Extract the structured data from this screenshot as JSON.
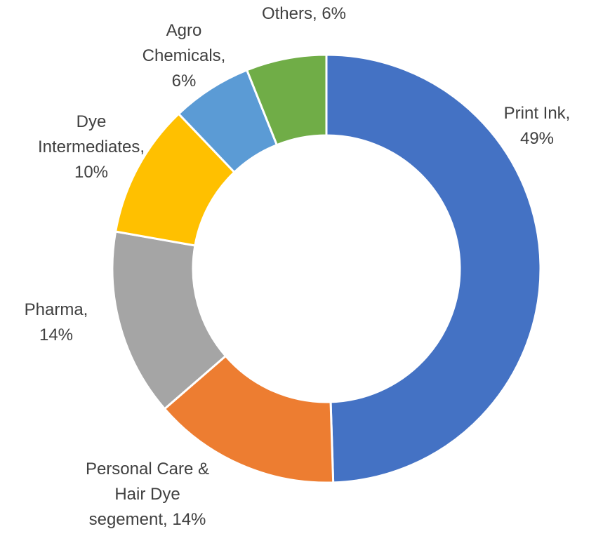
{
  "chart_data": {
    "type": "donut",
    "values": [
      49,
      14,
      14,
      10,
      6,
      6
    ],
    "value_labels": [
      "Print Ink, 49%",
      "Personal Care & Hair Dye segement, 14%",
      "Pharma, 14%",
      "Dye Intermediates, 10%",
      "Agro Chemicals, 6%",
      "Others, 6%"
    ],
    "colors": [
      "#4472c4",
      "#ed7d31",
      "#a5a5a5",
      "#ffc000",
      "#5b9bd5",
      "#70ad47"
    ]
  }
}
